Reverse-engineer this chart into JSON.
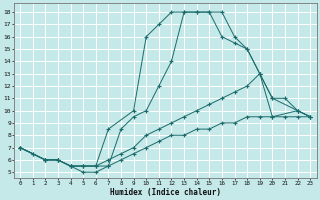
{
  "xlabel": "Humidex (Indice chaleur)",
  "bg_color": "#c5e8e8",
  "line_color": "#1a6b6b",
  "grid_color": "#b0d8d8",
  "xlim": [
    -0.5,
    23.5
  ],
  "ylim": [
    4.5,
    18.7
  ],
  "yticks": [
    5,
    6,
    7,
    8,
    9,
    10,
    11,
    12,
    13,
    14,
    15,
    16,
    17,
    18
  ],
  "xticks": [
    0,
    1,
    2,
    3,
    4,
    5,
    6,
    7,
    8,
    9,
    10,
    11,
    12,
    13,
    14,
    15,
    16,
    17,
    18,
    19,
    20,
    21,
    22,
    23
  ],
  "series": [
    {
      "x": [
        0,
        2,
        3,
        4,
        5,
        6,
        7,
        9,
        10,
        11,
        12,
        13,
        14,
        15,
        16,
        17,
        18,
        19,
        20,
        22,
        23
      ],
      "y": [
        7,
        6,
        6,
        5.5,
        5.5,
        5.5,
        8.5,
        10,
        16,
        17,
        18,
        18,
        18,
        18,
        16,
        15.5,
        15,
        13,
        11,
        10,
        9.5
      ]
    },
    {
      "x": [
        0,
        2,
        3,
        4,
        5,
        6,
        7,
        8,
        9,
        10,
        11,
        12,
        13,
        14,
        15,
        16,
        17,
        18,
        19,
        20,
        21,
        22,
        23
      ],
      "y": [
        7,
        6,
        6,
        5.5,
        5,
        5,
        5.5,
        8.5,
        9.5,
        10,
        12,
        14,
        18,
        18,
        18,
        18,
        16,
        15,
        13,
        11,
        11,
        10,
        9.5
      ]
    },
    {
      "x": [
        0,
        1,
        2,
        3,
        4,
        5,
        6,
        7,
        8,
        9,
        10,
        11,
        12,
        13,
        14,
        15,
        16,
        17,
        18,
        19,
        20,
        22,
        23
      ],
      "y": [
        7,
        6.5,
        6,
        6,
        5.5,
        5.5,
        5.5,
        6,
        6.5,
        7,
        8,
        8.5,
        9,
        9.5,
        10,
        10.5,
        11,
        11.5,
        12,
        13,
        9.5,
        10,
        9.5
      ]
    },
    {
      "x": [
        0,
        1,
        2,
        3,
        4,
        5,
        6,
        7,
        8,
        9,
        10,
        11,
        12,
        13,
        14,
        15,
        16,
        17,
        18,
        19,
        20,
        21,
        22,
        23
      ],
      "y": [
        7,
        6.5,
        6,
        6,
        5.5,
        5.5,
        5.5,
        5.5,
        6,
        6.5,
        7,
        7.5,
        8,
        8,
        8.5,
        8.5,
        9,
        9,
        9.5,
        9.5,
        9.5,
        9.5,
        9.5,
        9.5
      ]
    }
  ]
}
